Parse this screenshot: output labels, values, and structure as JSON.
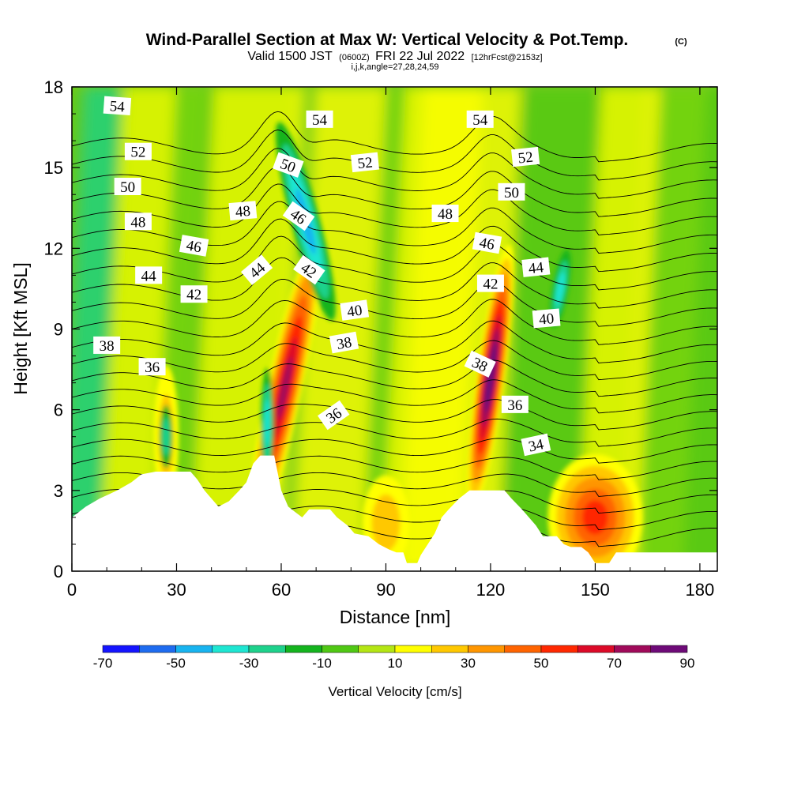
{
  "titles": {
    "main": "Wind-Parallel Section at Max W: Vertical Velocity & Pot.Temp.",
    "copyright": "(C)",
    "valid_a": "Valid 1500 JST",
    "valid_utc": "(0600Z)",
    "valid_b": "FRI 22 Jul 2022",
    "forecast": "[12hrFcst@2153z]",
    "indices": "i,j,k,angle=27,28,24,59"
  },
  "chart_data": {
    "type": "heatmap",
    "xlabel": "Distance [nm]",
    "ylabel": "Height [Kft MSL]",
    "xlim": [
      0,
      185
    ],
    "ylim": [
      0,
      18
    ],
    "x_ticks": [
      "0",
      "30",
      "60",
      "90",
      "120",
      "150",
      "180"
    ],
    "y_ticks": [
      "0",
      "3",
      "6",
      "9",
      "12",
      "15",
      "18"
    ],
    "colorbar": {
      "title": "Vertical Velocity [cm/s]",
      "placement": "bottom",
      "tick_labels": [
        "-70",
        "-50",
        "-30",
        "-10",
        "10",
        "30",
        "50",
        "70",
        "90"
      ],
      "bounds": [
        -70,
        90
      ],
      "step": 10,
      "colors": [
        "#1414ff",
        "#1e6cf0",
        "#18b4f0",
        "#1ee6d2",
        "#1ed28c",
        "#14b41e",
        "#50c814",
        "#b4e614",
        "#ffff00",
        "#ffc800",
        "#ff9600",
        "#ff6400",
        "#ff2800",
        "#dc0a28",
        "#a00a5a",
        "#6e0a78"
      ]
    },
    "terrain_kft": [
      [
        0,
        2.0
      ],
      [
        4,
        2.4
      ],
      [
        8,
        2.7
      ],
      [
        13,
        3.0
      ],
      [
        17,
        3.3
      ],
      [
        20,
        3.6
      ],
      [
        24,
        3.7
      ],
      [
        34,
        3.7
      ],
      [
        36,
        3.4
      ],
      [
        38,
        3.0
      ],
      [
        40,
        2.7
      ],
      [
        42,
        2.4
      ],
      [
        45,
        2.6
      ],
      [
        48,
        3.0
      ],
      [
        50,
        3.3
      ],
      [
        52,
        4.0
      ],
      [
        54,
        4.3
      ],
      [
        58,
        4.3
      ],
      [
        60,
        3.0
      ],
      [
        62,
        2.4
      ],
      [
        64,
        2.2
      ],
      [
        66,
        2.0
      ],
      [
        68,
        2.3
      ],
      [
        74,
        2.3
      ],
      [
        76,
        2.0
      ],
      [
        79,
        1.7
      ],
      [
        81,
        1.4
      ],
      [
        85,
        1.3
      ],
      [
        88,
        1.0
      ],
      [
        91,
        0.8
      ],
      [
        93,
        0.7
      ],
      [
        95,
        0.7
      ],
      [
        96,
        0.3
      ],
      [
        99,
        0.3
      ],
      [
        100,
        0.6
      ],
      [
        102,
        1.0
      ],
      [
        104,
        1.4
      ],
      [
        106,
        2.0
      ],
      [
        108,
        2.3
      ],
      [
        111,
        2.7
      ],
      [
        114,
        3.0
      ],
      [
        124,
        3.0
      ],
      [
        126,
        2.7
      ],
      [
        129,
        2.3
      ],
      [
        131,
        2.0
      ],
      [
        133,
        1.7
      ],
      [
        135,
        1.3
      ],
      [
        139,
        1.3
      ],
      [
        141,
        1.0
      ],
      [
        143,
        0.9
      ],
      [
        146,
        0.9
      ],
      [
        148,
        0.7
      ],
      [
        150,
        0.3
      ],
      [
        154,
        0.3
      ],
      [
        156,
        0.7
      ],
      [
        159,
        0.7
      ],
      [
        185,
        0.7
      ]
    ],
    "updrafts": [
      {
        "x": 61,
        "z": 6.8,
        "peak_cm_s": 65
      },
      {
        "x": 120,
        "z": 7.2,
        "peak_cm_s": 90
      },
      {
        "x": 150,
        "z": 2.0,
        "peak_cm_s": 45
      },
      {
        "x": 27,
        "z": 5.0,
        "peak_cm_s": 15
      },
      {
        "x": 90,
        "z": 1.8,
        "peak_cm_s": 15
      }
    ],
    "downdrafts": [
      {
        "x": 67,
        "z": 13.0,
        "peak_cm_s": -40
      },
      {
        "x": 56,
        "z": 5.5,
        "peak_cm_s": -30
      },
      {
        "x": 140,
        "z": 10.5,
        "peak_cm_s": -30
      },
      {
        "x": 27,
        "z": 5.0,
        "peak_cm_s": -20
      }
    ],
    "theta_levels": [
      33,
      34,
      35,
      36,
      37,
      38,
      39,
      40,
      41,
      42,
      43,
      44,
      45,
      46,
      47,
      48,
      49,
      50,
      51,
      52,
      53,
      54,
      55
    ],
    "theta_labels": [
      {
        "text": "54",
        "x": 13,
        "z": 17.3,
        "angle": 4
      },
      {
        "text": "52",
        "x": 19,
        "z": 15.6,
        "angle": 0
      },
      {
        "text": "50",
        "x": 16,
        "z": 14.3,
        "angle": 0
      },
      {
        "text": "48",
        "x": 19,
        "z": 13.0,
        "angle": 0
      },
      {
        "text": "46",
        "x": 35,
        "z": 12.1,
        "angle": 10
      },
      {
        "text": "44",
        "x": 22,
        "z": 11.0,
        "angle": 0
      },
      {
        "text": "42",
        "x": 35,
        "z": 10.3,
        "angle": 0
      },
      {
        "text": "38",
        "x": 10,
        "z": 8.4,
        "angle": 0
      },
      {
        "text": "36",
        "x": 23,
        "z": 7.6,
        "angle": 0
      },
      {
        "text": "50",
        "x": 62,
        "z": 15.1,
        "angle": 20
      },
      {
        "text": "48",
        "x": 49,
        "z": 13.4,
        "angle": -5
      },
      {
        "text": "54",
        "x": 71,
        "z": 16.8,
        "angle": 0
      },
      {
        "text": "52",
        "x": 84,
        "z": 15.2,
        "angle": -6
      },
      {
        "text": "46",
        "x": 65,
        "z": 13.2,
        "angle": 35
      },
      {
        "text": "44",
        "x": 53,
        "z": 11.2,
        "angle": -40
      },
      {
        "text": "42",
        "x": 68,
        "z": 11.2,
        "angle": 35
      },
      {
        "text": "40",
        "x": 81,
        "z": 9.7,
        "angle": -8
      },
      {
        "text": "38",
        "x": 78,
        "z": 8.5,
        "angle": -10
      },
      {
        "text": "36",
        "x": 75,
        "z": 5.8,
        "angle": -35
      },
      {
        "text": "48",
        "x": 107,
        "z": 13.3,
        "angle": 0
      },
      {
        "text": "54",
        "x": 117,
        "z": 16.8,
        "angle": 0
      },
      {
        "text": "52",
        "x": 130,
        "z": 15.4,
        "angle": -6
      },
      {
        "text": "50",
        "x": 126,
        "z": 14.1,
        "angle": 0
      },
      {
        "text": "46",
        "x": 119,
        "z": 12.2,
        "angle": 10
      },
      {
        "text": "44",
        "x": 133,
        "z": 11.3,
        "angle": -6
      },
      {
        "text": "42",
        "x": 120,
        "z": 10.7,
        "angle": 0
      },
      {
        "text": "40",
        "x": 136,
        "z": 9.4,
        "angle": -5
      },
      {
        "text": "38",
        "x": 117,
        "z": 7.7,
        "angle": 25
      },
      {
        "text": "36",
        "x": 127,
        "z": 6.2,
        "angle": 0
      },
      {
        "text": "34",
        "x": 133,
        "z": 4.7,
        "angle": -12
      }
    ],
    "grid": false,
    "legend": "none"
  }
}
